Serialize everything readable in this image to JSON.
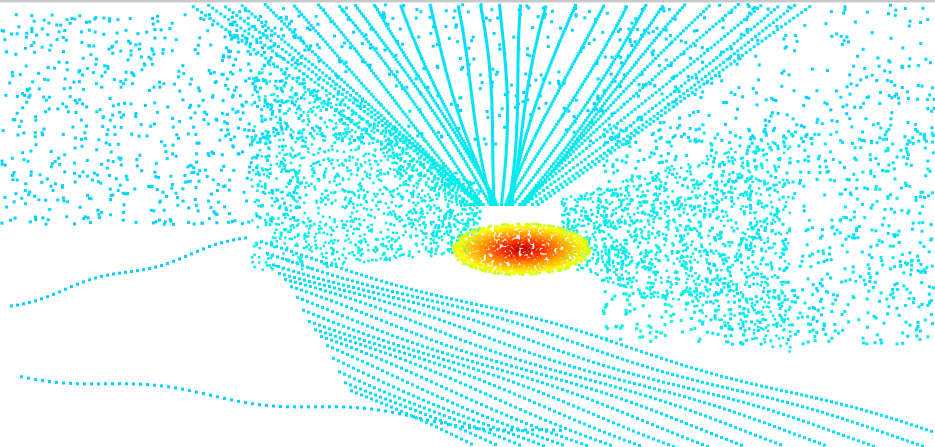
{
  "viewer": {
    "background_color": "#ffffff",
    "frame_edge_color": "#c9c9c9"
  },
  "point_cloud": {
    "render_style": "lidar-scan-top-perspective",
    "colormap": "jet",
    "colormap_stops": [
      "#00bfff",
      "#00e0ff",
      "#00ffd0",
      "#40ff80",
      "#ffff00",
      "#ffa000",
      "#ff3000",
      "#b00000"
    ],
    "dominant_color": "#1ec8f0",
    "hotspot_color": "#c00000"
  }
}
